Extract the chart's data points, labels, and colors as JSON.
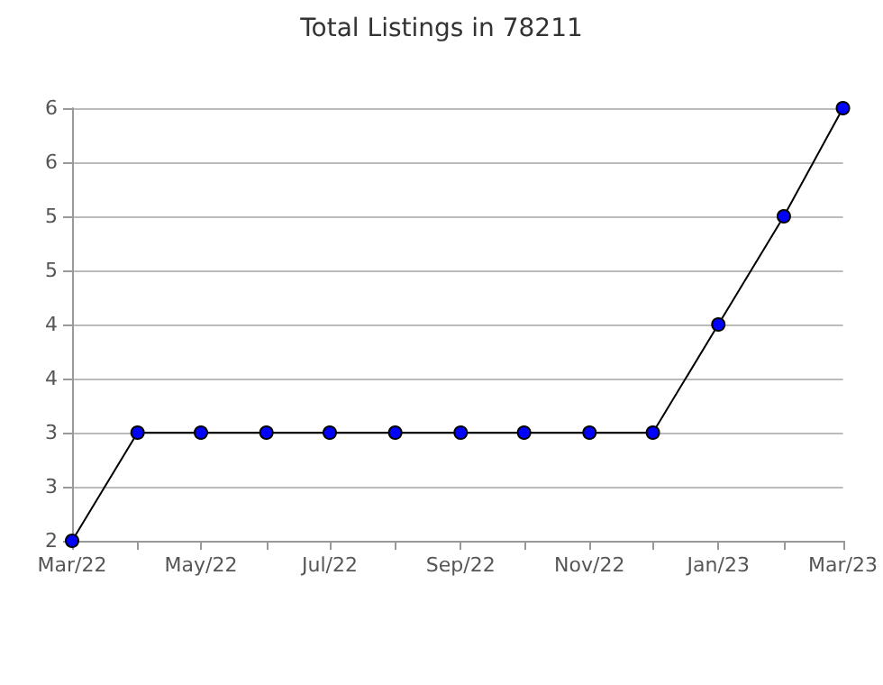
{
  "chart_data": {
    "type": "line",
    "title": "Total Listings in 78211",
    "x": [
      "2022-03",
      "2022-04",
      "2022-05",
      "2022-06",
      "2022-07",
      "2022-08",
      "2022-09",
      "2022-10",
      "2022-11",
      "2022-12",
      "2023-01",
      "2023-02",
      "2023-03"
    ],
    "series": [
      {
        "color": "#0000ff",
        "values": [
          2,
          3,
          3,
          3,
          3,
          3,
          3,
          3,
          3,
          3,
          4,
          5,
          6
        ]
      }
    ],
    "xlim": [
      "2022-03",
      "2023-03"
    ],
    "xticks": [
      {
        "value": "2022-03",
        "label": "Mar/22"
      },
      {
        "value": "2022-04",
        "label": null
      },
      {
        "value": "2022-05",
        "label": "May/22"
      },
      {
        "value": "2022-06",
        "label": null
      },
      {
        "value": "2022-07",
        "label": "Jul/22"
      },
      {
        "value": "2022-08",
        "label": null
      },
      {
        "value": "2022-09",
        "label": "Sep/22"
      },
      {
        "value": "2022-10",
        "label": null
      },
      {
        "value": "2022-11",
        "label": "Nov/22"
      },
      {
        "value": "2022-12",
        "label": null
      },
      {
        "value": "2023-01",
        "label": "Jan/23"
      },
      {
        "value": "2023-02",
        "label": null
      },
      {
        "value": "2023-03",
        "label": "Mar/23"
      }
    ],
    "ylim": [
      2,
      6
    ],
    "yticks": [
      2,
      {
        "value": 2.5,
        "label": "3"
      },
      3,
      {
        "value": 3.5,
        "label": "4"
      },
      4,
      {
        "value": 4.5,
        "label": "5"
      },
      5,
      {
        "value": 5.5,
        "label": "6"
      },
      6
    ],
    "grid": "y",
    "marker": "circle",
    "line_style": "solid"
  }
}
